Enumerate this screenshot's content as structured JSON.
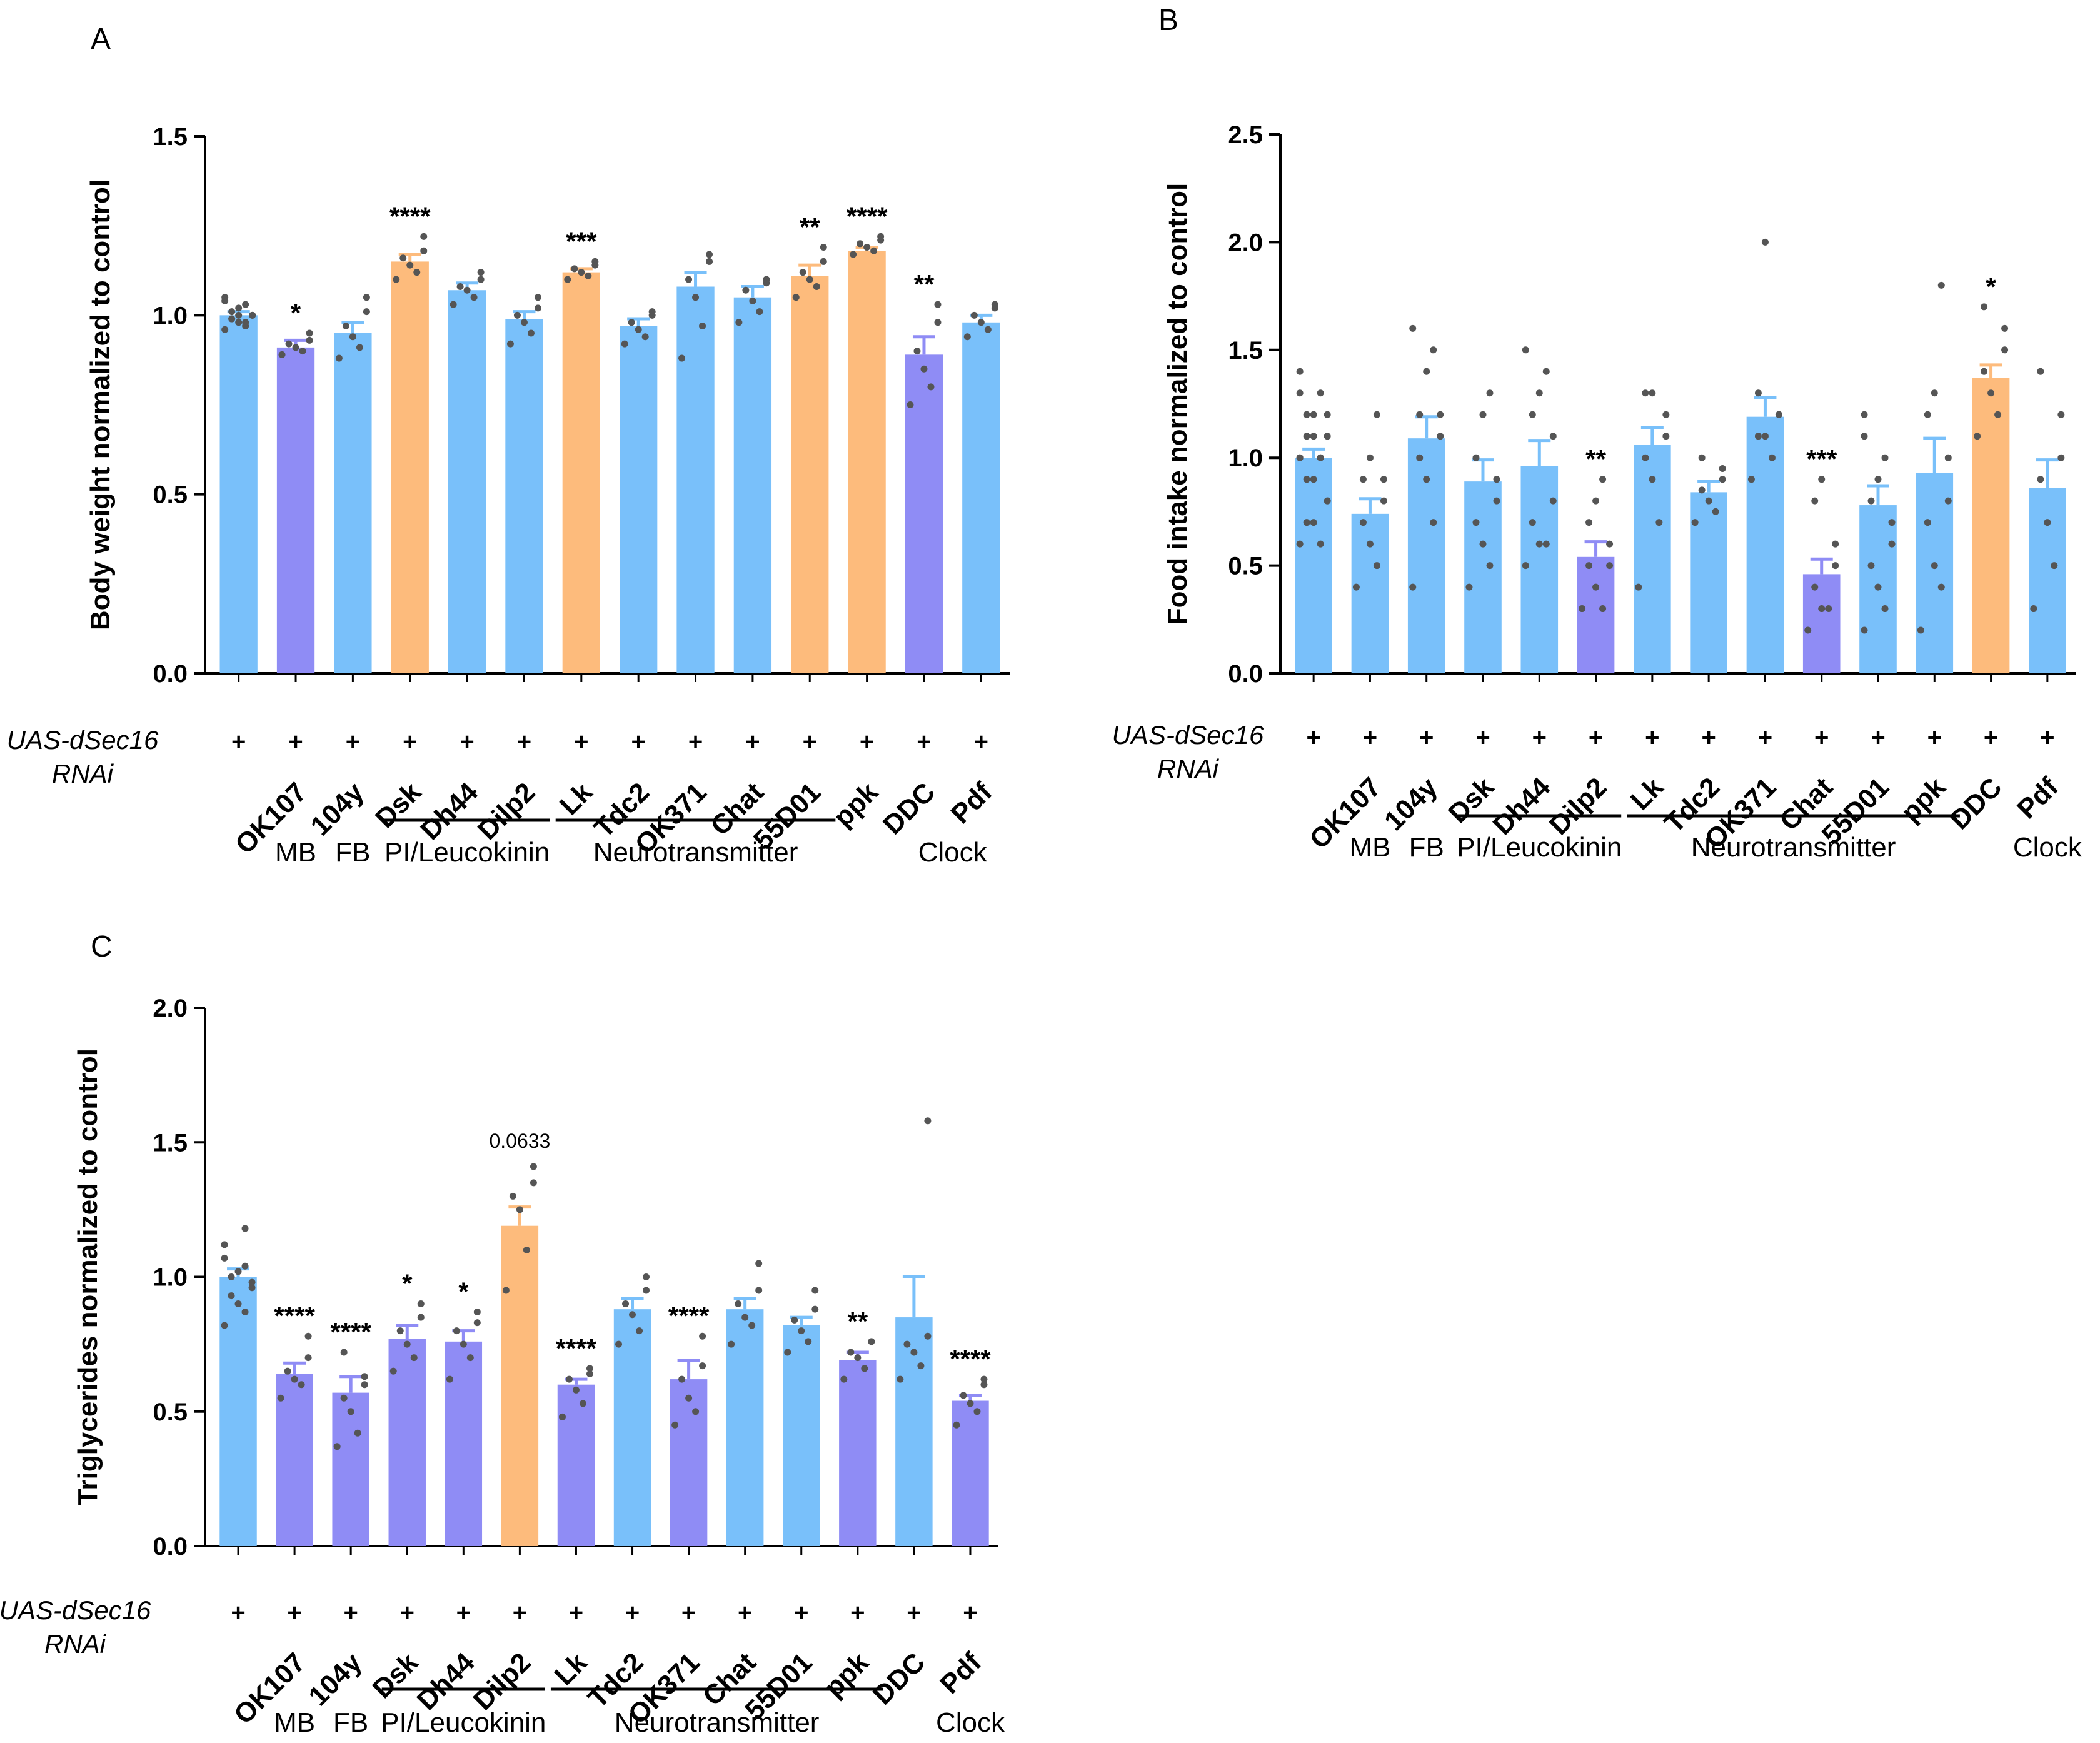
{
  "colors": {
    "control": "#79c0fa",
    "decreased": "#8f8cf5",
    "increased": "#fdbb7c",
    "dot": "#555555",
    "axis": "#000000"
  },
  "chart_data": [
    {
      "type": "bar",
      "panel": "A",
      "ylabel": "Body weight normalized to control",
      "ylim": [
        0,
        1.5
      ],
      "yticks": [
        "0.0",
        "0.5",
        "1.0",
        "1.5"
      ],
      "categories": [
        "",
        "OK107",
        "104y",
        "Dsk",
        "Dh44",
        "Dilp2",
        "Lk",
        "Tdc2",
        "OK371",
        "Chat",
        "55D01",
        "ppk",
        "DDC",
        "Pdf"
      ],
      "values": [
        1.0,
        0.91,
        0.95,
        1.15,
        1.07,
        0.99,
        1.12,
        0.97,
        1.08,
        1.05,
        1.11,
        1.18,
        0.89,
        0.98
      ],
      "errors": [
        0.01,
        0.02,
        0.03,
        0.02,
        0.02,
        0.02,
        0.01,
        0.02,
        0.04,
        0.03,
        0.03,
        0.01,
        0.05,
        0.02
      ],
      "colorKeys": [
        "control",
        "decreased",
        "control",
        "increased",
        "control",
        "control",
        "increased",
        "control",
        "control",
        "control",
        "increased",
        "increased",
        "decreased",
        "control"
      ],
      "significance": [
        "",
        "*",
        "",
        "****",
        "",
        "",
        "***",
        "",
        "",
        "",
        "**",
        "****",
        "**",
        ""
      ],
      "points": [
        [
          0.96,
          0.97,
          0.98,
          0.99,
          1.0,
          1.0,
          1.01,
          1.02,
          1.03,
          1.04,
          1.05,
          0.98,
          1.0,
          0.99
        ],
        [
          0.89,
          0.9,
          0.91,
          0.92,
          0.93,
          0.95
        ],
        [
          0.88,
          0.91,
          0.94,
          0.97,
          1.01,
          1.05
        ],
        [
          1.1,
          1.12,
          1.14,
          1.16,
          1.18,
          1.22
        ],
        [
          1.03,
          1.05,
          1.07,
          1.08,
          1.1,
          1.12
        ],
        [
          0.92,
          0.95,
          0.98,
          1.0,
          1.02,
          1.05
        ],
        [
          1.1,
          1.11,
          1.12,
          1.13,
          1.14,
          1.15
        ],
        [
          0.92,
          0.94,
          0.96,
          0.98,
          1.0,
          1.01
        ],
        [
          0.88,
          0.97,
          1.05,
          1.1,
          1.15,
          1.17
        ],
        [
          0.98,
          1.01,
          1.04,
          1.07,
          1.09,
          1.1
        ],
        [
          1.05,
          1.08,
          1.1,
          1.12,
          1.15,
          1.19
        ],
        [
          1.17,
          1.18,
          1.19,
          1.2,
          1.21,
          1.22
        ],
        [
          0.75,
          0.8,
          0.85,
          0.9,
          0.98,
          1.03
        ],
        [
          0.94,
          0.96,
          0.98,
          1.0,
          1.02,
          1.03
        ]
      ],
      "genotype_label": [
        "UAS-dSec16",
        "RNAi"
      ],
      "genotype_marks": [
        "+",
        "+",
        "+",
        "+",
        "+",
        "+",
        "+",
        "+",
        "+",
        "+",
        "+",
        "+",
        "+",
        "+"
      ],
      "groups": [
        {
          "label": "MB",
          "start": 1,
          "end": 1,
          "line": false
        },
        {
          "label": "FB",
          "start": 2,
          "end": 2,
          "line": false
        },
        {
          "label": "PI/Leucokinin",
          "start": 3,
          "end": 5,
          "line": true
        },
        {
          "label": "Neurotransmitter",
          "start": 6,
          "end": 10,
          "line": true
        },
        {
          "label": "Clock",
          "start": 12,
          "end": 13,
          "line": false
        }
      ]
    },
    {
      "type": "bar",
      "panel": "B",
      "ylabel": "Food intake normalized to control",
      "ylim": [
        0,
        2.5
      ],
      "yticks": [
        "0.0",
        "0.5",
        "1.0",
        "1.5",
        "2.0",
        "2.5"
      ],
      "categories": [
        "",
        "OK107",
        "104y",
        "Dsk",
        "Dh44",
        "Dilp2",
        "Lk",
        "Tdc2",
        "OK371",
        "Chat",
        "55D01",
        "ppk",
        "DDC",
        "Pdf"
      ],
      "values": [
        1.0,
        0.74,
        1.09,
        0.89,
        0.96,
        0.54,
        1.06,
        0.84,
        1.19,
        0.46,
        0.78,
        0.93,
        1.37,
        0.86
      ],
      "errors": [
        0.04,
        0.07,
        0.1,
        0.1,
        0.12,
        0.07,
        0.08,
        0.05,
        0.09,
        0.07,
        0.09,
        0.16,
        0.06,
        0.13
      ],
      "colorKeys": [
        "control",
        "control",
        "control",
        "control",
        "control",
        "decreased",
        "control",
        "control",
        "control",
        "decreased",
        "control",
        "control",
        "increased",
        "control"
      ],
      "significance": [
        "",
        "",
        "",
        "",
        "",
        "**",
        "",
        "",
        "",
        "***",
        "",
        "",
        "*",
        ""
      ],
      "points": [
        [
          0.6,
          0.6,
          0.7,
          0.7,
          0.8,
          0.8,
          0.9,
          0.9,
          1.0,
          1.0,
          1.0,
          1.0,
          1.1,
          1.1,
          1.1,
          1.2,
          1.2,
          1.2,
          1.3,
          1.3,
          1.4
        ],
        [
          0.4,
          0.5,
          0.6,
          0.7,
          0.8,
          0.9,
          0.9,
          1.0,
          1.2
        ],
        [
          0.4,
          0.7,
          0.9,
          1.0,
          1.1,
          1.2,
          1.2,
          1.4,
          1.5,
          1.6
        ],
        [
          0.4,
          0.5,
          0.6,
          0.7,
          0.8,
          0.9,
          1.0,
          1.2,
          1.3
        ],
        [
          0.5,
          0.6,
          0.6,
          0.7,
          0.8,
          1.1,
          1.2,
          1.3,
          1.4,
          1.5
        ],
        [
          0.3,
          0.3,
          0.4,
          0.5,
          0.5,
          0.6,
          0.7,
          0.8,
          0.9
        ],
        [
          0.4,
          0.7,
          0.9,
          1.0,
          1.1,
          1.2,
          1.3,
          1.3
        ],
        [
          0.7,
          0.75,
          0.8,
          0.85,
          0.9,
          0.95,
          1.0
        ],
        [
          0.9,
          1.0,
          1.1,
          1.1,
          1.2,
          1.2,
          1.3,
          2.0
        ],
        [
          0.2,
          0.3,
          0.3,
          0.4,
          0.5,
          0.6,
          0.8,
          0.9
        ],
        [
          0.2,
          0.3,
          0.4,
          0.5,
          0.6,
          0.7,
          0.8,
          0.9,
          1.0,
          1.1,
          1.2
        ],
        [
          0.2,
          0.4,
          0.5,
          0.7,
          0.8,
          1.0,
          1.2,
          1.3,
          1.8
        ],
        [
          1.1,
          1.2,
          1.3,
          1.4,
          1.5,
          1.6,
          1.7
        ],
        [
          0.3,
          0.5,
          0.7,
          0.9,
          1.0,
          1.2,
          1.4
        ]
      ],
      "genotype_label": [
        "UAS-dSec16",
        "RNAi"
      ],
      "genotype_marks": [
        "+",
        "+",
        "+",
        "+",
        "+",
        "+",
        "+",
        "+",
        "+",
        "+",
        "+",
        "+",
        "+",
        "+"
      ],
      "groups": [
        {
          "label": "MB",
          "start": 1,
          "end": 1,
          "line": false
        },
        {
          "label": "FB",
          "start": 2,
          "end": 2,
          "line": false
        },
        {
          "label": "PI/Leucokinin",
          "start": 3,
          "end": 5,
          "line": true
        },
        {
          "label": "Neurotransmitter",
          "start": 6,
          "end": 11,
          "line": true
        },
        {
          "label": "Clock",
          "start": 13,
          "end": 13,
          "line": false
        }
      ]
    },
    {
      "type": "bar",
      "panel": "C",
      "ylabel": "Triglycerides normalized to control",
      "ylim": [
        0,
        2.0
      ],
      "yticks": [
        "0.0",
        "0.5",
        "1.0",
        "1.5",
        "2.0"
      ],
      "categories": [
        "",
        "OK107",
        "104y",
        "Dsk",
        "Dh44",
        "Dilp2",
        "Lk",
        "Tdc2",
        "OK371",
        "Chat",
        "55D01",
        "ppk",
        "DDC",
        "Pdf"
      ],
      "values": [
        1.0,
        0.64,
        0.57,
        0.77,
        0.76,
        1.19,
        0.6,
        0.88,
        0.62,
        0.88,
        0.82,
        0.69,
        0.85,
        0.54
      ],
      "errors": [
        0.03,
        0.04,
        0.06,
        0.05,
        0.04,
        0.07,
        0.02,
        0.04,
        0.07,
        0.04,
        0.03,
        0.03,
        0.15,
        0.02
      ],
      "colorKeys": [
        "control",
        "decreased",
        "decreased",
        "decreased",
        "decreased",
        "increased",
        "decreased",
        "control",
        "decreased",
        "control",
        "control",
        "decreased",
        "control",
        "decreased"
      ],
      "significance": [
        "",
        "****",
        "****",
        "*",
        "*",
        "0.0633",
        "****",
        "",
        "****",
        "",
        "",
        "**",
        "",
        "****"
      ],
      "points": [
        [
          0.82,
          0.87,
          0.9,
          0.93,
          0.96,
          0.98,
          1.0,
          1.02,
          1.04,
          1.07,
          1.12,
          1.18
        ],
        [
          0.55,
          0.6,
          0.62,
          0.65,
          0.7,
          0.78
        ],
        [
          0.37,
          0.42,
          0.5,
          0.55,
          0.6,
          0.63,
          0.72
        ],
        [
          0.65,
          0.7,
          0.75,
          0.8,
          0.85,
          0.9
        ],
        [
          0.62,
          0.7,
          0.75,
          0.8,
          0.83,
          0.87
        ],
        [
          0.95,
          1.1,
          1.25,
          1.3,
          1.35,
          1.41
        ],
        [
          0.48,
          0.53,
          0.58,
          0.62,
          0.64,
          0.66
        ],
        [
          0.75,
          0.8,
          0.86,
          0.9,
          0.95,
          1.0
        ],
        [
          0.45,
          0.5,
          0.55,
          0.62,
          0.67,
          0.78
        ],
        [
          0.75,
          0.82,
          0.85,
          0.9,
          0.95,
          1.05
        ],
        [
          0.72,
          0.76,
          0.8,
          0.84,
          0.88,
          0.95
        ],
        [
          0.62,
          0.66,
          0.7,
          0.72,
          0.76
        ],
        [
          0.62,
          0.67,
          0.72,
          0.75,
          0.78,
          1.58
        ],
        [
          0.45,
          0.5,
          0.53,
          0.56,
          0.6,
          0.62
        ]
      ],
      "genotype_label": [
        "UAS-dSec16",
        "RNAi"
      ],
      "genotype_marks": [
        "+",
        "+",
        "+",
        "+",
        "+",
        "+",
        "+",
        "+",
        "+",
        "+",
        "+",
        "+",
        "+",
        "+"
      ],
      "groups": [
        {
          "label": "MB",
          "start": 1,
          "end": 1,
          "line": false
        },
        {
          "label": "FB",
          "start": 2,
          "end": 2,
          "line": false
        },
        {
          "label": "PI/Leucokinin",
          "start": 3,
          "end": 5,
          "line": true
        },
        {
          "label": "Neurotransmitter",
          "start": 6,
          "end": 11,
          "line": true
        },
        {
          "label": "Clock",
          "start": 13,
          "end": 13,
          "line": false
        }
      ]
    }
  ]
}
